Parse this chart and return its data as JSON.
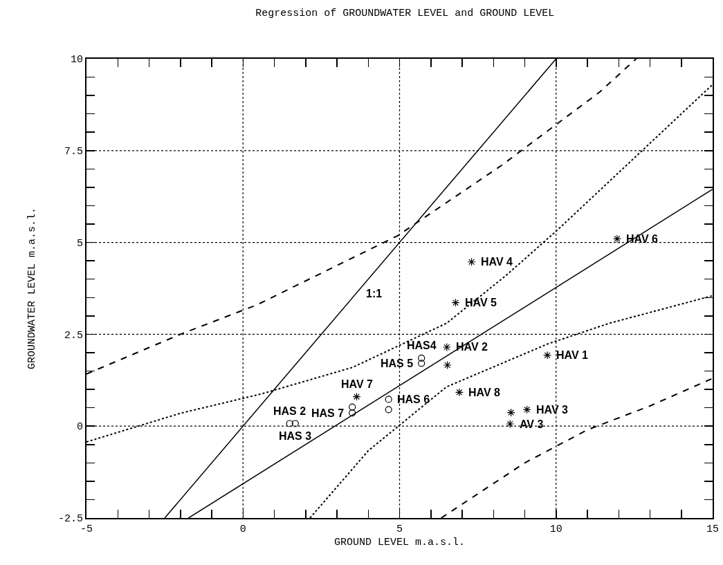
{
  "chart_data": {
    "type": "scatter",
    "title": "Regression of GROUNDWATER LEVEL and GROUND LEVEL",
    "xlabel": "GROUND LEVEL m.a.s.l.",
    "ylabel": "GROUNDWATER LEVEL m.a.s.l.",
    "xlim": [
      -5,
      15
    ],
    "ylim": [
      -2.5,
      10
    ],
    "xticks": [
      -5,
      {
        "value": -4,
        "label": null
      },
      {
        "value": -3,
        "label": null
      },
      {
        "value": -2,
        "label": null
      },
      {
        "value": -1,
        "label": null
      },
      0,
      {
        "value": 1,
        "label": null
      },
      {
        "value": 2,
        "label": null
      },
      {
        "value": 3,
        "label": null
      },
      {
        "value": 4,
        "label": null
      },
      5,
      {
        "value": 6,
        "label": null
      },
      {
        "value": 7,
        "label": null
      },
      {
        "value": 8,
        "label": null
      },
      {
        "value": 9,
        "label": null
      },
      10,
      {
        "value": 11,
        "label": null
      },
      {
        "value": 12,
        "label": null
      },
      {
        "value": 13,
        "label": null
      },
      {
        "value": 14,
        "label": null
      },
      15
    ],
    "yticks": [
      -2.5,
      {
        "value": -2,
        "label": null
      },
      {
        "value": -1.5,
        "label": null
      },
      {
        "value": -1,
        "label": null
      },
      {
        "value": -0.5,
        "label": null
      },
      0,
      {
        "value": 0.5,
        "label": null
      },
      {
        "value": 1,
        "label": null
      },
      {
        "value": 1.5,
        "label": null
      },
      {
        "value": 2,
        "label": null
      },
      2.5,
      {
        "value": 3,
        "label": null
      },
      {
        "value": 3.5,
        "label": null
      },
      {
        "value": 4,
        "label": null
      },
      {
        "value": 4.5,
        "label": null
      },
      5,
      {
        "value": 5.5,
        "label": null
      },
      {
        "value": 6,
        "label": null
      },
      {
        "value": 6.5,
        "label": null
      },
      {
        "value": 7,
        "label": null
      },
      7.5,
      {
        "value": 8,
        "label": null
      },
      {
        "value": 8.5,
        "label": null
      },
      {
        "value": 9,
        "label": null
      },
      {
        "value": 9.5,
        "label": null
      },
      10
    ],
    "grid": true,
    "series": [
      {
        "marker": "cross",
        "color": "#000000",
        "x": [
          7.3,
          6.79,
          6.51,
          6.53,
          9.72,
          3.63,
          6.91,
          8.56,
          9.07,
          8.53,
          11.95
        ],
        "values": [
          4.47,
          3.36,
          2.15,
          1.66,
          1.93,
          0.8,
          0.92,
          0.37,
          0.45,
          0.06,
          5.1
        ]
      },
      {
        "marker": "circle",
        "color": "#000000",
        "x": [
          5.7,
          5.7,
          3.49,
          3.49,
          4.65,
          4.65,
          1.49,
          1.67
        ],
        "values": [
          1.85,
          1.71,
          0.52,
          0.36,
          0.73,
          0.45,
          0.07,
          0.07
        ]
      },
      {
        "type": "line",
        "line_style": "solid",
        "color": "#000000",
        "x": [
          -2.5,
          10
        ],
        "values": [
          -2.5,
          10
        ]
      },
      {
        "type": "line",
        "line_style": "solid",
        "color": "#000000",
        "x": [
          -1.74,
          15
        ],
        "values": [
          -2.5,
          6.45
        ]
      },
      {
        "type": "line",
        "line_style": "dotted",
        "color": "#000000",
        "x": [
          -5,
          -2,
          0.6,
          3.5,
          6.5,
          8.4,
          10.07,
          15
        ],
        "values": [
          -0.43,
          0.35,
          0.88,
          1.6,
          2.8,
          4.1,
          5.36,
          9.3
        ]
      },
      {
        "type": "line",
        "line_style": "dotted",
        "color": "#000000",
        "x": [
          2.14,
          4,
          6.5,
          9.74,
          11.7,
          15
        ],
        "values": [
          -2.5,
          -0.67,
          1.07,
          2.24,
          2.8,
          3.55
        ]
      },
      {
        "type": "line",
        "line_style": "dashed",
        "color": "#000000",
        "x": [
          -5,
          -2,
          0.44,
          4.93,
          8.26,
          11.4,
          12.56
        ],
        "values": [
          1.42,
          2.5,
          3.3,
          5.18,
          7.1,
          9.1,
          10
        ]
      },
      {
        "type": "line",
        "line_style": "dashed",
        "color": "#000000",
        "x": [
          6.33,
          9,
          11,
          13,
          15
        ],
        "values": [
          -2.5,
          -1,
          -0.1,
          0.55,
          1.3
        ]
      }
    ],
    "annotations": [
      {
        "text": "1:1",
        "x": 3.6,
        "y": 3.6
      },
      {
        "text": "HAV 4",
        "x": 7.3,
        "y": 4.47
      },
      {
        "text": "HAV 5",
        "x": 6.79,
        "y": 3.36
      },
      {
        "text": "HAS4",
        "x": 5.7,
        "y": 1.85
      },
      {
        "text": "HAV 2",
        "x": 6.51,
        "y": 2.15
      },
      {
        "text": "HAS 5",
        "x": 5.7,
        "y": 1.71
      },
      {
        "text": "HAV 1",
        "x": 9.72,
        "y": 1.93
      },
      {
        "text": "HAV 7",
        "x": 3.63,
        "y": 0.8
      },
      {
        "text": "HAS 6",
        "x": 4.65,
        "y": 0.73
      },
      {
        "text": "HAV 8",
        "x": 6.91,
        "y": 0.92
      },
      {
        "text": "HAV 3",
        "x": 9.07,
        "y": 0.45
      },
      {
        "text": "AV 3",
        "x": 8.53,
        "y": 0.06
      },
      {
        "text": "HAS 7",
        "x": 3.49,
        "y": 0.36
      },
      {
        "text": "HAS 2",
        "x": 1.49,
        "y": 0.07
      },
      {
        "text": "HAS 3",
        "x": 1.67,
        "y": 0.07
      },
      {
        "text": "HAV 6",
        "x": 11.95,
        "y": 5.1
      }
    ]
  }
}
